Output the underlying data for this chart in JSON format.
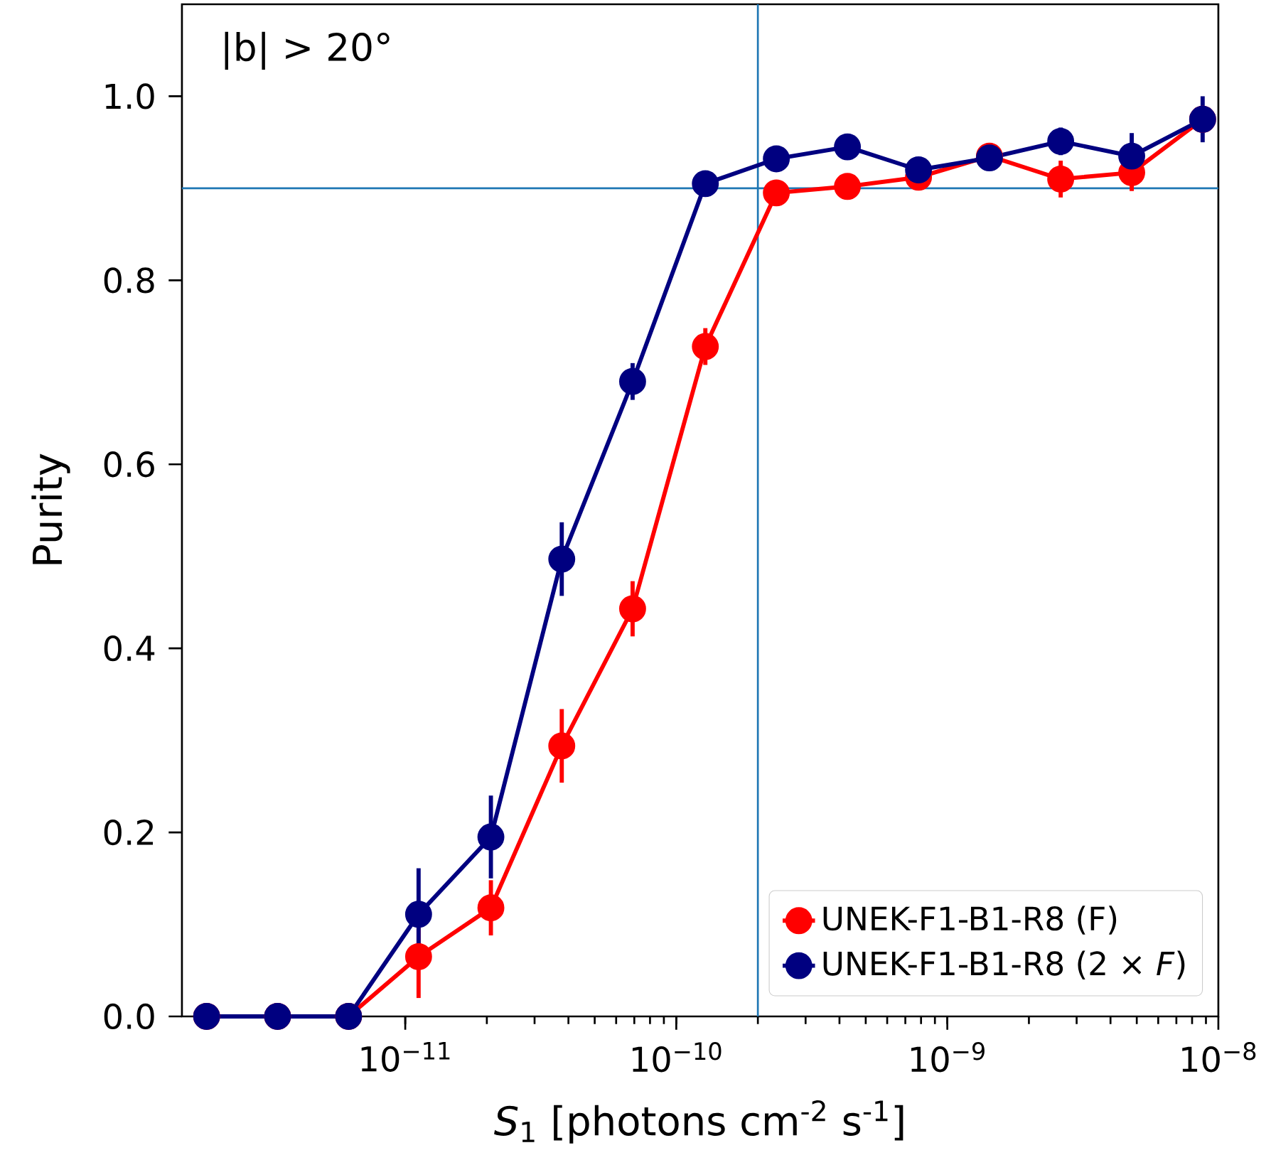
{
  "chart_data": {
    "type": "line",
    "xlabel": "*S*$_{1}$ [photons cm$^{-2}$ s$^{-1}$]",
    "ylabel": "Purity",
    "annotations": [
      "|b| > 20°"
    ],
    "x": [
      1.85e-12,
      3.38e-12,
      6.18e-12,
      1.12e-11,
      2.07e-11,
      3.78e-11,
      6.9e-11,
      1.28e-10,
      2.34e-10,
      4.28e-10,
      7.83e-10,
      1.43e-09,
      2.62e-09,
      4.79e-09,
      8.75e-09
    ],
    "series": [
      {
        "name": "UNEK-F1-B1-R8 (F)",
        "color": "#ff0000",
        "values": [
          0,
          0,
          0,
          0.065,
          0.118,
          0.294,
          0.443,
          0.728,
          0.895,
          0.902,
          0.912,
          0.935,
          0.91,
          0.917,
          0.975
        ],
        "errors": [
          null,
          null,
          null,
          0.045,
          0.03,
          0.04,
          0.03,
          0.02,
          null,
          null,
          null,
          0.01,
          0.02,
          0.02,
          null
        ]
      },
      {
        "name": "UNEK-F1-B1-R8 (2 × *F*)",
        "color": "#000080",
        "values": [
          0,
          0,
          0,
          0.111,
          0.195,
          0.497,
          0.69,
          0.905,
          0.932,
          0.945,
          0.92,
          0.933,
          0.951,
          0.935,
          0.975
        ],
        "errors": [
          null,
          null,
          null,
          0.05,
          0.045,
          0.04,
          0.02,
          null,
          null,
          null,
          null,
          null,
          0.015,
          0.025,
          0.025
        ]
      }
    ],
    "log": "x",
    "xlim": [
      1.5e-12,
      1e-08
    ],
    "xticks": [
      {
        "value": 1e-11,
        "label": "10$^{−11}$"
      },
      {
        "value": 1e-10,
        "label": "10$^{−10}$"
      },
      {
        "value": 1e-09,
        "label": "10$^{−9}$"
      },
      {
        "value": 1e-08,
        "label": "10$^{−8}$"
      }
    ],
    "ylim": [
      0,
      1.1
    ],
    "yticks": [
      {
        "value": 0,
        "label": "0.0"
      },
      {
        "value": 0.2,
        "label": "0.2"
      },
      {
        "value": 0.4,
        "label": "0.4"
      },
      {
        "value": 0.6,
        "label": "0.6"
      },
      {
        "value": 0.8,
        "label": "0.8"
      },
      {
        "value": 1.0,
        "label": "1.0"
      }
    ],
    "ref_lines": [
      {
        "axis": "x",
        "value": 2e-10,
        "color": "#1f77b4"
      },
      {
        "axis": "y",
        "value": 0.9,
        "color": "#1f77b4"
      }
    ],
    "grid": false,
    "legend": "bottom right",
    "marker": "circle",
    "line_style": "solid"
  }
}
